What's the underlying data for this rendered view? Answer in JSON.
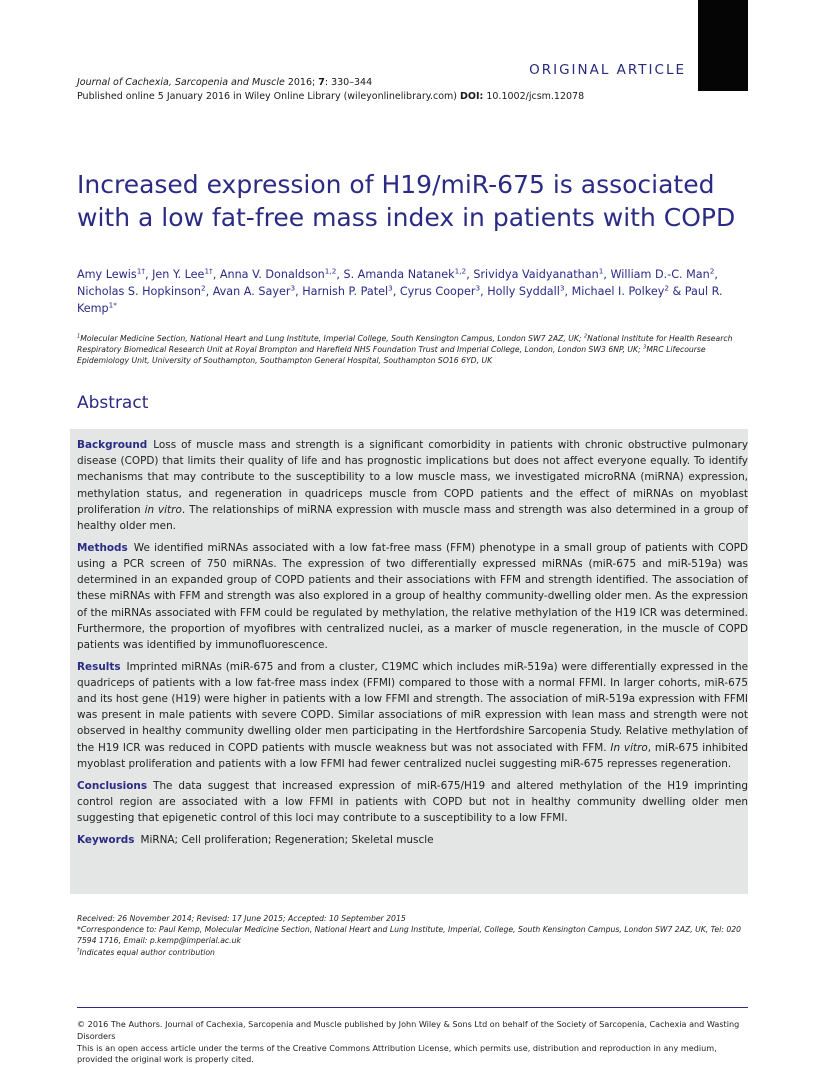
{
  "header": {
    "section_tag": "ORIGINAL ARTICLE",
    "journal_name": "Journal of Cachexia, Sarcopenia and Muscle",
    "journal_year": " 2016; ",
    "journal_volume": "7",
    "journal_pages": ": 330–344",
    "published_online": "Published online 5 January 2016 in Wiley Online Library (wileyonlinelibrary.com) ",
    "doi_label": "DOI:",
    "doi_value": " 10.1002/jcsm.12078"
  },
  "article": {
    "title": "Increased expression of H19/miR-675 is associated with a low fat-free mass index in patients with COPD",
    "authors": [
      {
        "name": "Amy Lewis",
        "sup": "1†"
      },
      {
        "name": "Jen Y. Lee",
        "sup": "1†"
      },
      {
        "name": "Anna V. Donaldson",
        "sup": "1,2"
      },
      {
        "name": "S. Amanda Natanek",
        "sup": "1,2"
      },
      {
        "name": "Srividya Vaidyanathan",
        "sup": "1"
      },
      {
        "name": "William D.-C. Man",
        "sup": "2"
      },
      {
        "name": "Nicholas S. Hopkinson",
        "sup": "2"
      },
      {
        "name": "Avan A. Sayer",
        "sup": "3"
      },
      {
        "name": "Harnish P. Patel",
        "sup": "3"
      },
      {
        "name": "Cyrus Cooper",
        "sup": "3"
      },
      {
        "name": "Holly Syddall",
        "sup": "3"
      },
      {
        "name": "Michael I. Polkey",
        "sup": "2"
      },
      {
        "name": "Paul R. Kemp",
        "sup": "1*"
      }
    ],
    "affiliations": [
      {
        "sup": "1",
        "text": "Molecular Medicine Section, National Heart and Lung Institute, Imperial College, South Kensington Campus, London SW7 2AZ, UK; "
      },
      {
        "sup": "2",
        "text": "National Institute for Health Research Respiratory Biomedical Research Unit at Royal Brompton and Harefield NHS Foundation Trust and Imperial College, London, London SW3 6NP, UK; "
      },
      {
        "sup": "3",
        "text": "MRC Lifecourse Epidemiology Unit, University of Southampton, Southampton General Hospital, Southampton SO16 6YD, UK"
      }
    ]
  },
  "abstract": {
    "heading": "Abstract",
    "background_label": "Background",
    "background_text_1": "Loss of muscle mass and strength is a significant comorbidity in patients with chronic obstructive pulmonary disease (COPD) that limits their quality of life and has prognostic implications but does not affect everyone equally. To identify mechanisms that may contribute to the susceptibility to a low muscle mass, we investigated microRNA (miRNA) expression, methylation status, and regeneration in quadriceps muscle from COPD patients and the effect of miRNAs on myoblast proliferation ",
    "background_italic": "in vitro",
    "background_text_2": ". The relationships of miRNA expression with muscle mass and strength was also determined in a group of healthy older men.",
    "methods_label": "Methods",
    "methods_text": "We identified miRNAs associated with a low fat-free mass (FFM) phenotype in a small group of patients with COPD using a PCR screen of 750 miRNAs. The expression of two differentially expressed miRNAs (miR-675 and miR-519a) was determined in an expanded group of COPD patients and their associations with FFM and strength identified. The association of these miRNAs with FFM and strength was also explored in a group of healthy community-dwelling older men. As the expression of the miRNAs associated with FFM could be regulated by methylation, the relative methylation of the H19 ICR was determined. Furthermore, the proportion of myofibres with centralized nuclei, as a marker of muscle regeneration, in the muscle of COPD patients was identified by immunofluorescence.",
    "results_label": "Results",
    "results_text_1": "Imprinted miRNAs (miR-675 and from a cluster, C19MC which includes miR-519a) were differentially expressed in the quadriceps of patients with a low fat-free mass index (FFMI) compared to those with a normal FFMI. In larger cohorts, miR-675 and its host gene (H19) were higher in patients with a low FFMI and strength. The association of miR-519a expression with FFMI was present in male patients with severe COPD. Similar associations of miR expression with lean mass and strength were not observed in healthy community dwelling older men participating in the Hertfordshire Sarcopenia Study. Relative methylation of the H19 ICR was reduced in COPD patients with muscle weakness but was not associated with FFM. ",
    "results_italic": "In vitro",
    "results_text_2": ", miR-675 inhibited myoblast proliferation and patients with a low FFMI had fewer centralized nuclei suggesting miR-675 represses regeneration.",
    "conclusions_label": "Conclusions",
    "conclusions_text": "The data suggest that increased expression of miR-675/H19 and altered methylation of the H19 imprinting control region are associated with a low FFMI in patients with COPD but not in healthy community dwelling older men suggesting that epigenetic control of this loci may contribute to a susceptibility to a low FFMI.",
    "keywords_label": "Keywords",
    "keywords_text": "MiRNA; Cell proliferation; Regeneration; Skeletal muscle"
  },
  "footnotes": {
    "received": "Received: 26 November 2014; Revised: 17 June 2015; Accepted: 10 September 2015",
    "correspondence": "*Correspondence to: Paul Kemp, Molecular Medicine Section, National Heart and Lung Institute, Imperial, College, South Kensington Campus, London SW7 2AZ, UK, Tel: 020 7594 1716, Email: p.kemp@imperial.ac.uk",
    "equal_sup": "†",
    "equal_text": "Indicates equal author contribution"
  },
  "footer": {
    "copyright": "© 2016 The Authors. Journal of Cachexia, Sarcopenia and Muscle published by John Wiley & Sons Ltd on behalf of the Society of Sarcopenia, Cachexia and Wasting Disorders",
    "license": "This is an open access article under the terms of the Creative Commons Attribution License, which permits use, distribution and reproduction in any medium, provided the original work is properly cited."
  },
  "colors": {
    "accent": "#2b2b85",
    "abstract_bg": "#e3e6e4",
    "tab": "#050505"
  }
}
